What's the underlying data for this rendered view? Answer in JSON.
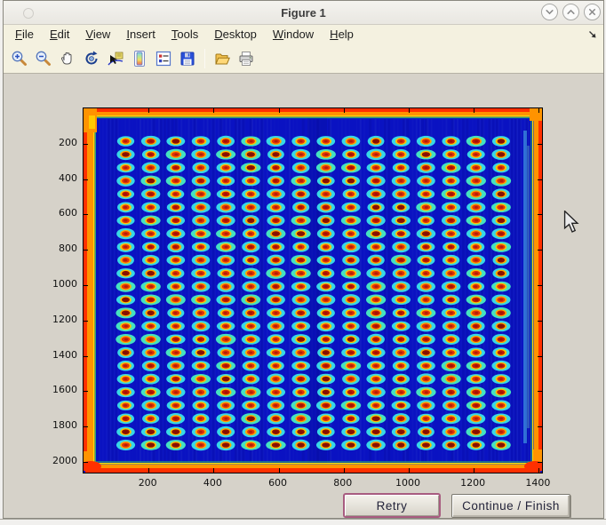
{
  "window": {
    "title": "Figure 1",
    "controls": [
      "minimize",
      "maximize",
      "close"
    ]
  },
  "menu": {
    "items": [
      {
        "label": "File"
      },
      {
        "label": "Edit"
      },
      {
        "label": "View"
      },
      {
        "label": "Insert"
      },
      {
        "label": "Tools"
      },
      {
        "label": "Desktop"
      },
      {
        "label": "Window"
      },
      {
        "label": "Help"
      }
    ]
  },
  "toolbar": {
    "icons": [
      "zoom-in",
      "zoom-out",
      "pan",
      "rotate-3d",
      "data-cursor",
      "colorbar",
      "insert-legend",
      "save",
      "open-folder",
      "print"
    ]
  },
  "chart_data": {
    "type": "heatmap",
    "title": "Figure 1",
    "xlabel": "",
    "ylabel": "",
    "xlim": [
      0,
      1410
    ],
    "ylim": [
      0,
      2060
    ],
    "y_axis_direction": "reversed",
    "xticks": [
      200,
      400,
      600,
      800,
      1000,
      1200,
      1400
    ],
    "yticks": [
      200,
      400,
      600,
      800,
      1000,
      1200,
      1400,
      1600,
      1800,
      2000
    ],
    "grid_on": false,
    "colormap": "jet",
    "description": "Jet-colormap thermal image of a 384-well microplate: 24 rows x 16 columns of hot wells (red cores with yellow rings and cyan halos) on a cold deep-blue plate body; plate edges glow red/orange/yellow; wide orange band along left edge and cyan streak near right edge.",
    "grid": {
      "rows": 24,
      "cols": 16
    },
    "colors": {
      "background": "#0a12c2",
      "well_halo": "#38d8e6",
      "well_ring": "#ffc200",
      "well_core": "#e23208",
      "well_core_dark": "#8f1200",
      "edge_red": "#ff3000",
      "edge_orange": "#ff9300",
      "edge_yellow": "#ffe000",
      "edge_green": "#2ed060",
      "edge_cyan": "#40c8f0"
    }
  },
  "buttons": {
    "retry": "Retry",
    "continue_finish": "Continue / Finish"
  },
  "chrome_colors": {
    "figure_gray": "#d6d2c9",
    "menu_beige": "#f4f1e0",
    "titlebar": "#f0efeb",
    "retry_focus_border": "#a85c80"
  }
}
